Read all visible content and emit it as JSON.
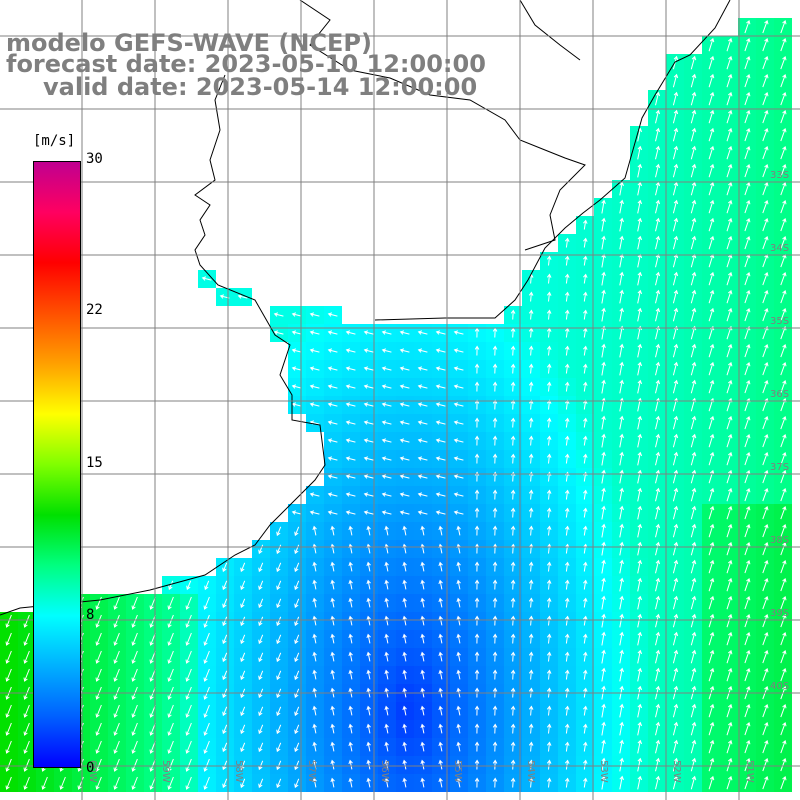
{
  "title": {
    "line1": "modelo GEFS-WAVE (NCEP)",
    "line2": "forecast date: 2023-05-10 12:00:00",
    "line3": "valid date: 2023-05-14 12:00:00"
  },
  "colorbar": {
    "unit": "[m/s]",
    "ticks": [
      {
        "label": "30",
        "value": 30
      },
      {
        "label": "22",
        "value": 22
      },
      {
        "label": "15",
        "value": 15
      },
      {
        "label": "8",
        "value": 8
      },
      {
        "label": "0",
        "value": 0
      }
    ],
    "colors": [
      "#0000ff",
      "#0060ff",
      "#00b0ff",
      "#00ffff",
      "#00ff80",
      "#00e000",
      "#80ff00",
      "#ffff00",
      "#ffa000",
      "#ff5000",
      "#ff0000",
      "#ff0060",
      "#c00090"
    ]
  },
  "map": {
    "background": "#ffffff",
    "grid_color": "#808080",
    "coast_color": "#000000",
    "lat_labels": [
      "33S",
      "34S",
      "35S",
      "36S",
      "37S",
      "38S",
      "39S",
      "40S"
    ],
    "lon_labels": [
      "60W",
      "59W",
      "58W",
      "57W",
      "56W",
      "55W",
      "54W",
      "53W",
      "52W",
      "51W"
    ]
  }
}
